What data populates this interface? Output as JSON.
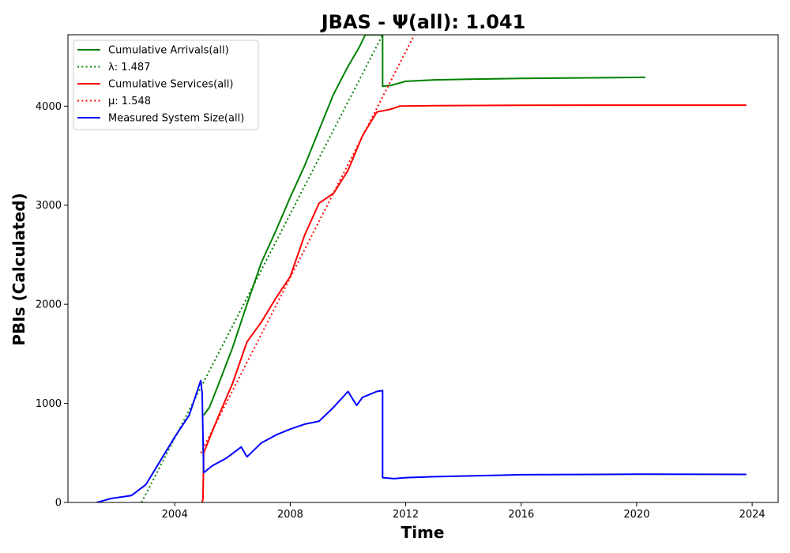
{
  "chart_data": {
    "type": "line",
    "title": "JBAS -  Ψ(all): 1.041",
    "xlabel": "Time",
    "ylabel": "PBIs (Calculated)",
    "xlim": [
      2000.3,
      2024.9
    ],
    "ylim": [
      0,
      4720
    ],
    "x_ticks": [
      2004,
      2008,
      2012,
      2016,
      2020,
      2024
    ],
    "y_ticks": [
      0,
      1000,
      2000,
      3000,
      4000
    ],
    "grid": false,
    "legend_position": "upper-left",
    "series": [
      {
        "name": "Cumulative Arrivals(all)",
        "style": "solid",
        "color": "#008000",
        "points": [
          [
            2005.0,
            880
          ],
          [
            2005.2,
            960
          ],
          [
            2005.5,
            1180
          ],
          [
            2006.0,
            1560
          ],
          [
            2006.5,
            2000
          ],
          [
            2007.0,
            2420
          ],
          [
            2007.5,
            2740
          ],
          [
            2008.0,
            3080
          ],
          [
            2008.5,
            3400
          ],
          [
            2009.0,
            3760
          ],
          [
            2009.5,
            4120
          ],
          [
            2010.0,
            4400
          ],
          [
            2010.4,
            4600
          ],
          [
            2010.6,
            4720
          ],
          [
            2011.2,
            4720
          ],
          [
            2011.2,
            4200
          ],
          [
            2011.5,
            4210
          ],
          [
            2012.0,
            4250
          ],
          [
            2013.0,
            4265
          ],
          [
            2014.0,
            4270
          ],
          [
            2016.0,
            4280
          ],
          [
            2018.0,
            4285
          ],
          [
            2020.3,
            4290
          ]
        ]
      },
      {
        "name": "λ: 1.487",
        "style": "dotted",
        "color": "#008000",
        "points": [
          [
            2002.85,
            0
          ],
          [
            2011.2,
            4720
          ]
        ]
      },
      {
        "name": "Cumulative Services(all)",
        "style": "solid",
        "color": "#ff0000",
        "points": [
          [
            2004.95,
            0
          ],
          [
            2004.98,
            40
          ],
          [
            2005.0,
            500
          ],
          [
            2005.5,
            860
          ],
          [
            2006.0,
            1200
          ],
          [
            2006.5,
            1620
          ],
          [
            2007.0,
            1820
          ],
          [
            2007.5,
            2060
          ],
          [
            2008.0,
            2280
          ],
          [
            2008.5,
            2700
          ],
          [
            2009.0,
            3020
          ],
          [
            2009.5,
            3120
          ],
          [
            2010.0,
            3350
          ],
          [
            2010.5,
            3700
          ],
          [
            2011.0,
            3940
          ],
          [
            2011.5,
            3970
          ],
          [
            2011.8,
            4000
          ],
          [
            2013.0,
            4005
          ],
          [
            2016.0,
            4008
          ],
          [
            2020.0,
            4010
          ],
          [
            2023.8,
            4010
          ]
        ]
      },
      {
        "name": "μ: 1.548",
        "style": "dotted",
        "color": "#ff0000",
        "points": [
          [
            2004.9,
            500
          ],
          [
            2012.3,
            4720
          ]
        ]
      },
      {
        "name": "Measured System Size(all)",
        "style": "solid",
        "color": "#0000ff",
        "points": [
          [
            2001.3,
            0
          ],
          [
            2001.8,
            40
          ],
          [
            2002.5,
            70
          ],
          [
            2003.0,
            180
          ],
          [
            2003.5,
            420
          ],
          [
            2004.0,
            660
          ],
          [
            2004.5,
            880
          ],
          [
            2004.9,
            1230
          ],
          [
            2004.95,
            1100
          ],
          [
            2005.0,
            300
          ],
          [
            2005.3,
            370
          ],
          [
            2005.8,
            450
          ],
          [
            2006.3,
            560
          ],
          [
            2006.5,
            460
          ],
          [
            2007.0,
            600
          ],
          [
            2007.5,
            680
          ],
          [
            2008.0,
            740
          ],
          [
            2008.5,
            790
          ],
          [
            2009.0,
            820
          ],
          [
            2009.5,
            960
          ],
          [
            2010.0,
            1120
          ],
          [
            2010.3,
            980
          ],
          [
            2010.5,
            1060
          ],
          [
            2011.0,
            1120
          ],
          [
            2011.2,
            1130
          ],
          [
            2011.2,
            250
          ],
          [
            2011.6,
            240
          ],
          [
            2012.0,
            250
          ],
          [
            2013.0,
            260
          ],
          [
            2016.0,
            280
          ],
          [
            2020.0,
            285
          ],
          [
            2023.8,
            283
          ]
        ]
      }
    ]
  }
}
